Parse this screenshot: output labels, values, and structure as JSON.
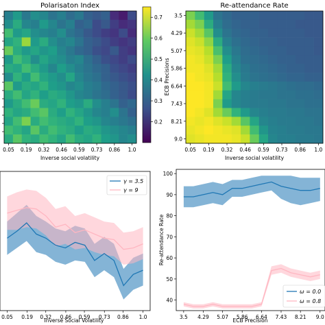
{
  "chart_data": [
    {
      "type": "heatmap",
      "title": "Polarisaton Index",
      "xlabel": "Inverse social volatility",
      "ylabel": "",
      "x_tick_labels": [
        "0.05",
        "0.19",
        "0.32",
        "0.46",
        "0.59",
        "0.73",
        "0.86",
        "1.0"
      ],
      "rows": 15,
      "cols": 15,
      "colormap": "viridis",
      "vmin": 0.1,
      "vmax": 0.75,
      "colorbar_ticks": [
        0.2,
        0.3,
        0.4,
        0.5,
        0.6,
        0.7
      ],
      "colorbar_tick_labels": [
        "0.2",
        "0.3",
        "0.4",
        "0.5",
        "0.6",
        "0.7"
      ],
      "values": [
        [
          0.38,
          0.45,
          0.36,
          0.42,
          0.4,
          0.35,
          0.38,
          0.33,
          0.36,
          0.3,
          0.28,
          0.3,
          0.18,
          0.15,
          0.25
        ],
        [
          0.42,
          0.5,
          0.4,
          0.38,
          0.45,
          0.4,
          0.35,
          0.38,
          0.3,
          0.32,
          0.25,
          0.28,
          0.22,
          0.18,
          0.2
        ],
        [
          0.55,
          0.45,
          0.48,
          0.42,
          0.4,
          0.38,
          0.42,
          0.35,
          0.32,
          0.28,
          0.25,
          0.22,
          0.2,
          0.25,
          0.18
        ],
        [
          0.48,
          0.52,
          0.65,
          0.45,
          0.5,
          0.42,
          0.38,
          0.4,
          0.35,
          0.3,
          0.28,
          0.25,
          0.22,
          0.2,
          0.22
        ],
        [
          0.6,
          0.5,
          0.45,
          0.48,
          0.44,
          0.46,
          0.4,
          0.36,
          0.32,
          0.3,
          0.26,
          0.24,
          0.28,
          0.22,
          0.2
        ],
        [
          0.45,
          0.55,
          0.5,
          0.42,
          0.48,
          0.44,
          0.42,
          0.38,
          0.4,
          0.34,
          0.3,
          0.26,
          0.24,
          0.22,
          0.25
        ],
        [
          0.5,
          0.48,
          0.55,
          0.5,
          0.45,
          0.4,
          0.46,
          0.42,
          0.38,
          0.35,
          0.32,
          0.3,
          0.26,
          0.24,
          0.22
        ],
        [
          0.42,
          0.52,
          0.46,
          0.55,
          0.48,
          0.45,
          0.42,
          0.48,
          0.4,
          0.36,
          0.34,
          0.3,
          0.28,
          0.26,
          0.24
        ],
        [
          0.58,
          0.45,
          0.5,
          0.48,
          0.52,
          0.46,
          0.44,
          0.4,
          0.42,
          0.38,
          0.36,
          0.32,
          0.3,
          0.28,
          0.26
        ],
        [
          0.5,
          0.55,
          0.48,
          0.52,
          0.46,
          0.5,
          0.48,
          0.44,
          0.4,
          0.38,
          0.35,
          0.33,
          0.3,
          0.28,
          0.25
        ],
        [
          0.45,
          0.5,
          0.55,
          0.6,
          0.5,
          0.48,
          0.52,
          0.46,
          0.44,
          0.5,
          0.42,
          0.38,
          0.35,
          0.3,
          0.32
        ],
        [
          0.52,
          0.48,
          0.5,
          0.55,
          0.58,
          0.5,
          0.46,
          0.52,
          0.48,
          0.44,
          0.4,
          0.38,
          0.42,
          0.35,
          0.3
        ],
        [
          0.48,
          0.55,
          0.62,
          0.5,
          0.55,
          0.52,
          0.5,
          0.48,
          0.52,
          0.46,
          0.44,
          0.4,
          0.38,
          0.36,
          0.34
        ],
        [
          0.55,
          0.52,
          0.48,
          0.58,
          0.5,
          0.55,
          0.52,
          0.5,
          0.46,
          0.5,
          0.48,
          0.44,
          0.42,
          0.4,
          0.38
        ],
        [
          0.5,
          0.58,
          0.52,
          0.5,
          0.55,
          0.52,
          0.48,
          0.55,
          0.5,
          0.48,
          0.52,
          0.46,
          0.44,
          0.4,
          0.42
        ]
      ]
    },
    {
      "type": "heatmap",
      "title": "Re-attendance Rate",
      "xlabel": "Inverse social volatility",
      "ylabel": "ECB Precisions",
      "x_tick_labels": [
        "0.05",
        "0.19",
        "0.32",
        "0.46",
        "0.59",
        "0.73",
        "0.86",
        "1.0"
      ],
      "y_tick_labels": [
        "3.5",
        "4.29",
        "5.07",
        "5.86",
        "6.64",
        "7.43",
        "8.21",
        "9.0"
      ],
      "rows": 15,
      "cols": 15,
      "colormap": "viridis",
      "vmin": 0.1,
      "vmax": 0.75,
      "values": [
        [
          0.62,
          0.55,
          0.45,
          0.35,
          0.32,
          0.3,
          0.3,
          0.3,
          0.29,
          0.29,
          0.29,
          0.29,
          0.29,
          0.28,
          0.28
        ],
        [
          0.66,
          0.62,
          0.5,
          0.38,
          0.33,
          0.31,
          0.3,
          0.3,
          0.29,
          0.29,
          0.29,
          0.29,
          0.28,
          0.28,
          0.28
        ],
        [
          0.7,
          0.66,
          0.58,
          0.42,
          0.35,
          0.32,
          0.31,
          0.3,
          0.3,
          0.29,
          0.29,
          0.29,
          0.29,
          0.28,
          0.28
        ],
        [
          0.72,
          0.7,
          0.64,
          0.5,
          0.38,
          0.34,
          0.32,
          0.31,
          0.3,
          0.3,
          0.29,
          0.29,
          0.29,
          0.29,
          0.28
        ],
        [
          0.73,
          0.72,
          0.68,
          0.56,
          0.42,
          0.36,
          0.33,
          0.32,
          0.31,
          0.3,
          0.3,
          0.29,
          0.29,
          0.29,
          0.28
        ],
        [
          0.74,
          0.73,
          0.7,
          0.62,
          0.46,
          0.38,
          0.34,
          0.33,
          0.32,
          0.31,
          0.3,
          0.3,
          0.29,
          0.29,
          0.29
        ],
        [
          0.74,
          0.74,
          0.72,
          0.66,
          0.5,
          0.4,
          0.36,
          0.34,
          0.33,
          0.32,
          0.31,
          0.3,
          0.3,
          0.29,
          0.29
        ],
        [
          0.75,
          0.74,
          0.73,
          0.68,
          0.52,
          0.42,
          0.37,
          0.35,
          0.34,
          0.33,
          0.32,
          0.31,
          0.31,
          0.3,
          0.3
        ],
        [
          0.75,
          0.75,
          0.74,
          0.7,
          0.55,
          0.45,
          0.4,
          0.38,
          0.37,
          0.36,
          0.35,
          0.34,
          0.33,
          0.33,
          0.32
        ],
        [
          0.75,
          0.75,
          0.74,
          0.66,
          0.48,
          0.4,
          0.38,
          0.37,
          0.36,
          0.36,
          0.35,
          0.35,
          0.34,
          0.34,
          0.33
        ],
        [
          0.75,
          0.75,
          0.74,
          0.62,
          0.45,
          0.4,
          0.38,
          0.37,
          0.37,
          0.36,
          0.36,
          0.35,
          0.35,
          0.34,
          0.34
        ],
        [
          0.75,
          0.74,
          0.72,
          0.66,
          0.6,
          0.52,
          0.45,
          0.4,
          0.38,
          0.37,
          0.37,
          0.36,
          0.36,
          0.35,
          0.35
        ],
        [
          0.74,
          0.73,
          0.74,
          0.72,
          0.7,
          0.66,
          0.58,
          0.48,
          0.4,
          0.38,
          0.37,
          0.37,
          0.36,
          0.36,
          0.35
        ],
        [
          0.73,
          0.74,
          0.75,
          0.74,
          0.73,
          0.72,
          0.66,
          0.55,
          0.44,
          0.39,
          0.38,
          0.37,
          0.37,
          0.36,
          0.36
        ],
        [
          0.72,
          0.73,
          0.74,
          0.74,
          0.74,
          0.73,
          0.7,
          0.6,
          0.48,
          0.4,
          0.38,
          0.38,
          0.37,
          0.37,
          0.36
        ]
      ]
    },
    {
      "type": "line",
      "title": "",
      "xlabel": "Inverse Social Volatility",
      "ylabel": "",
      "x_tick_labels": [
        "0.05",
        "0.19",
        "0.32",
        "0.46",
        "0.59",
        "0.73",
        "0.86",
        "1.0"
      ],
      "x": [
        0.05,
        0.118,
        0.186,
        0.254,
        0.321,
        0.389,
        0.457,
        0.525,
        0.593,
        0.661,
        0.729,
        0.797,
        0.864,
        0.932,
        1.0
      ],
      "xlim": [
        0.0,
        1.05
      ],
      "ylim": [
        0.0,
        1.0
      ],
      "legend_position": "upper right",
      "series": [
        {
          "name": "γ = 3.5",
          "color": "#1f77b4",
          "values": [
            0.52,
            0.57,
            0.63,
            0.55,
            0.52,
            0.47,
            0.45,
            0.49,
            0.47,
            0.36,
            0.41,
            0.36,
            0.18,
            0.26,
            0.29
          ],
          "lower": [
            0.4,
            0.45,
            0.5,
            0.42,
            0.4,
            0.35,
            0.33,
            0.36,
            0.35,
            0.24,
            0.29,
            0.24,
            0.08,
            0.15,
            0.18
          ],
          "upper": [
            0.64,
            0.7,
            0.76,
            0.68,
            0.64,
            0.59,
            0.57,
            0.61,
            0.59,
            0.48,
            0.53,
            0.48,
            0.3,
            0.38,
            0.41
          ]
        },
        {
          "name": "γ = 9",
          "color": "#ffb6c1",
          "values": [
            0.7,
            0.72,
            0.74,
            0.73,
            0.68,
            0.6,
            0.62,
            0.56,
            0.58,
            0.55,
            0.52,
            0.51,
            0.44,
            0.45,
            0.48
          ],
          "lower": [
            0.58,
            0.58,
            0.6,
            0.59,
            0.54,
            0.46,
            0.48,
            0.44,
            0.45,
            0.42,
            0.4,
            0.39,
            0.33,
            0.34,
            0.37
          ],
          "upper": [
            0.82,
            0.85,
            0.87,
            0.86,
            0.81,
            0.73,
            0.75,
            0.68,
            0.7,
            0.67,
            0.64,
            0.63,
            0.56,
            0.57,
            0.6
          ]
        }
      ]
    },
    {
      "type": "line",
      "title": "",
      "xlabel": "ECB Precision",
      "ylabel": "Re-attendance Rate",
      "x_tick_labels": [
        "3.5",
        "4.29",
        "5.07",
        "5.86",
        "6.64",
        "7.43",
        "8.21",
        "9.0"
      ],
      "y_ticks": [
        40,
        50,
        60,
        70,
        80,
        90,
        100
      ],
      "x": [
        3.5,
        3.89,
        4.29,
        4.68,
        5.07,
        5.46,
        5.86,
        6.25,
        6.64,
        7.04,
        7.43,
        7.82,
        8.21,
        8.61,
        9.0
      ],
      "xlim": [
        3.2,
        9.2
      ],
      "ylim": [
        35,
        102
      ],
      "legend_position": "lower right",
      "series": [
        {
          "name": "ω = 0.0",
          "color": "#1f77b4",
          "values": [
            89,
            89,
            90,
            91,
            90,
            93,
            93,
            94,
            95,
            96,
            94,
            93,
            92,
            92,
            93
          ],
          "lower": [
            84,
            84,
            85,
            86,
            85,
            89,
            89,
            90,
            91,
            92,
            88,
            86,
            85,
            86,
            87
          ],
          "upper": [
            94,
            94,
            95,
            96,
            95,
            97,
            97,
            98,
            99,
            99,
            99,
            99,
            98,
            98,
            98
          ]
        },
        {
          "name": "ω = 0.8",
          "color": "#ffb6c1",
          "values": [
            38,
            37,
            37,
            38,
            37,
            37,
            37,
            37,
            38,
            54,
            55,
            53,
            52,
            51,
            52
          ],
          "lower": [
            37,
            36,
            36,
            37,
            36,
            36,
            36,
            36,
            37,
            52,
            53,
            51,
            50,
            49,
            50
          ],
          "upper": [
            39,
            38,
            38,
            39,
            38,
            38,
            38,
            38,
            39,
            56,
            57,
            55,
            54,
            53,
            54
          ]
        }
      ]
    }
  ]
}
